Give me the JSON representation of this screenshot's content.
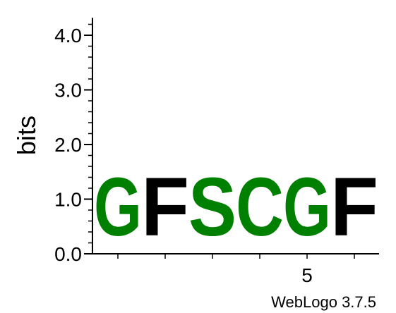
{
  "chart_data": {
    "type": "sequence-logo",
    "ylabel": "bits",
    "ylim": [
      0,
      4.32
    ],
    "yticks": [
      {
        "value": 0.0,
        "label": "0.0"
      },
      {
        "value": 1.0,
        "label": "1.0"
      },
      {
        "value": 2.0,
        "label": "2.0"
      },
      {
        "value": 3.0,
        "label": "3.0"
      },
      {
        "value": 4.0,
        "label": "4.0"
      }
    ],
    "yminor_step": 0.2,
    "positions": [
      1,
      2,
      3,
      4,
      5,
      6
    ],
    "xtick_labels": [
      {
        "position": 5,
        "label": "5"
      }
    ],
    "stacks": [
      {
        "position": 1,
        "letter": "G",
        "bits": 1.7,
        "color": "#008000"
      },
      {
        "position": 2,
        "letter": "F",
        "bits": 1.7,
        "color": "#000000"
      },
      {
        "position": 3,
        "letter": "S",
        "bits": 1.7,
        "color": "#008000"
      },
      {
        "position": 4,
        "letter": "C",
        "bits": 1.7,
        "color": "#008000"
      },
      {
        "position": 5,
        "letter": "G",
        "bits": 1.7,
        "color": "#008000"
      },
      {
        "position": 6,
        "letter": "F",
        "bits": 1.7,
        "color": "#000000"
      }
    ],
    "grid": false
  },
  "footer": {
    "credit": "WebLogo 3.7.5"
  }
}
